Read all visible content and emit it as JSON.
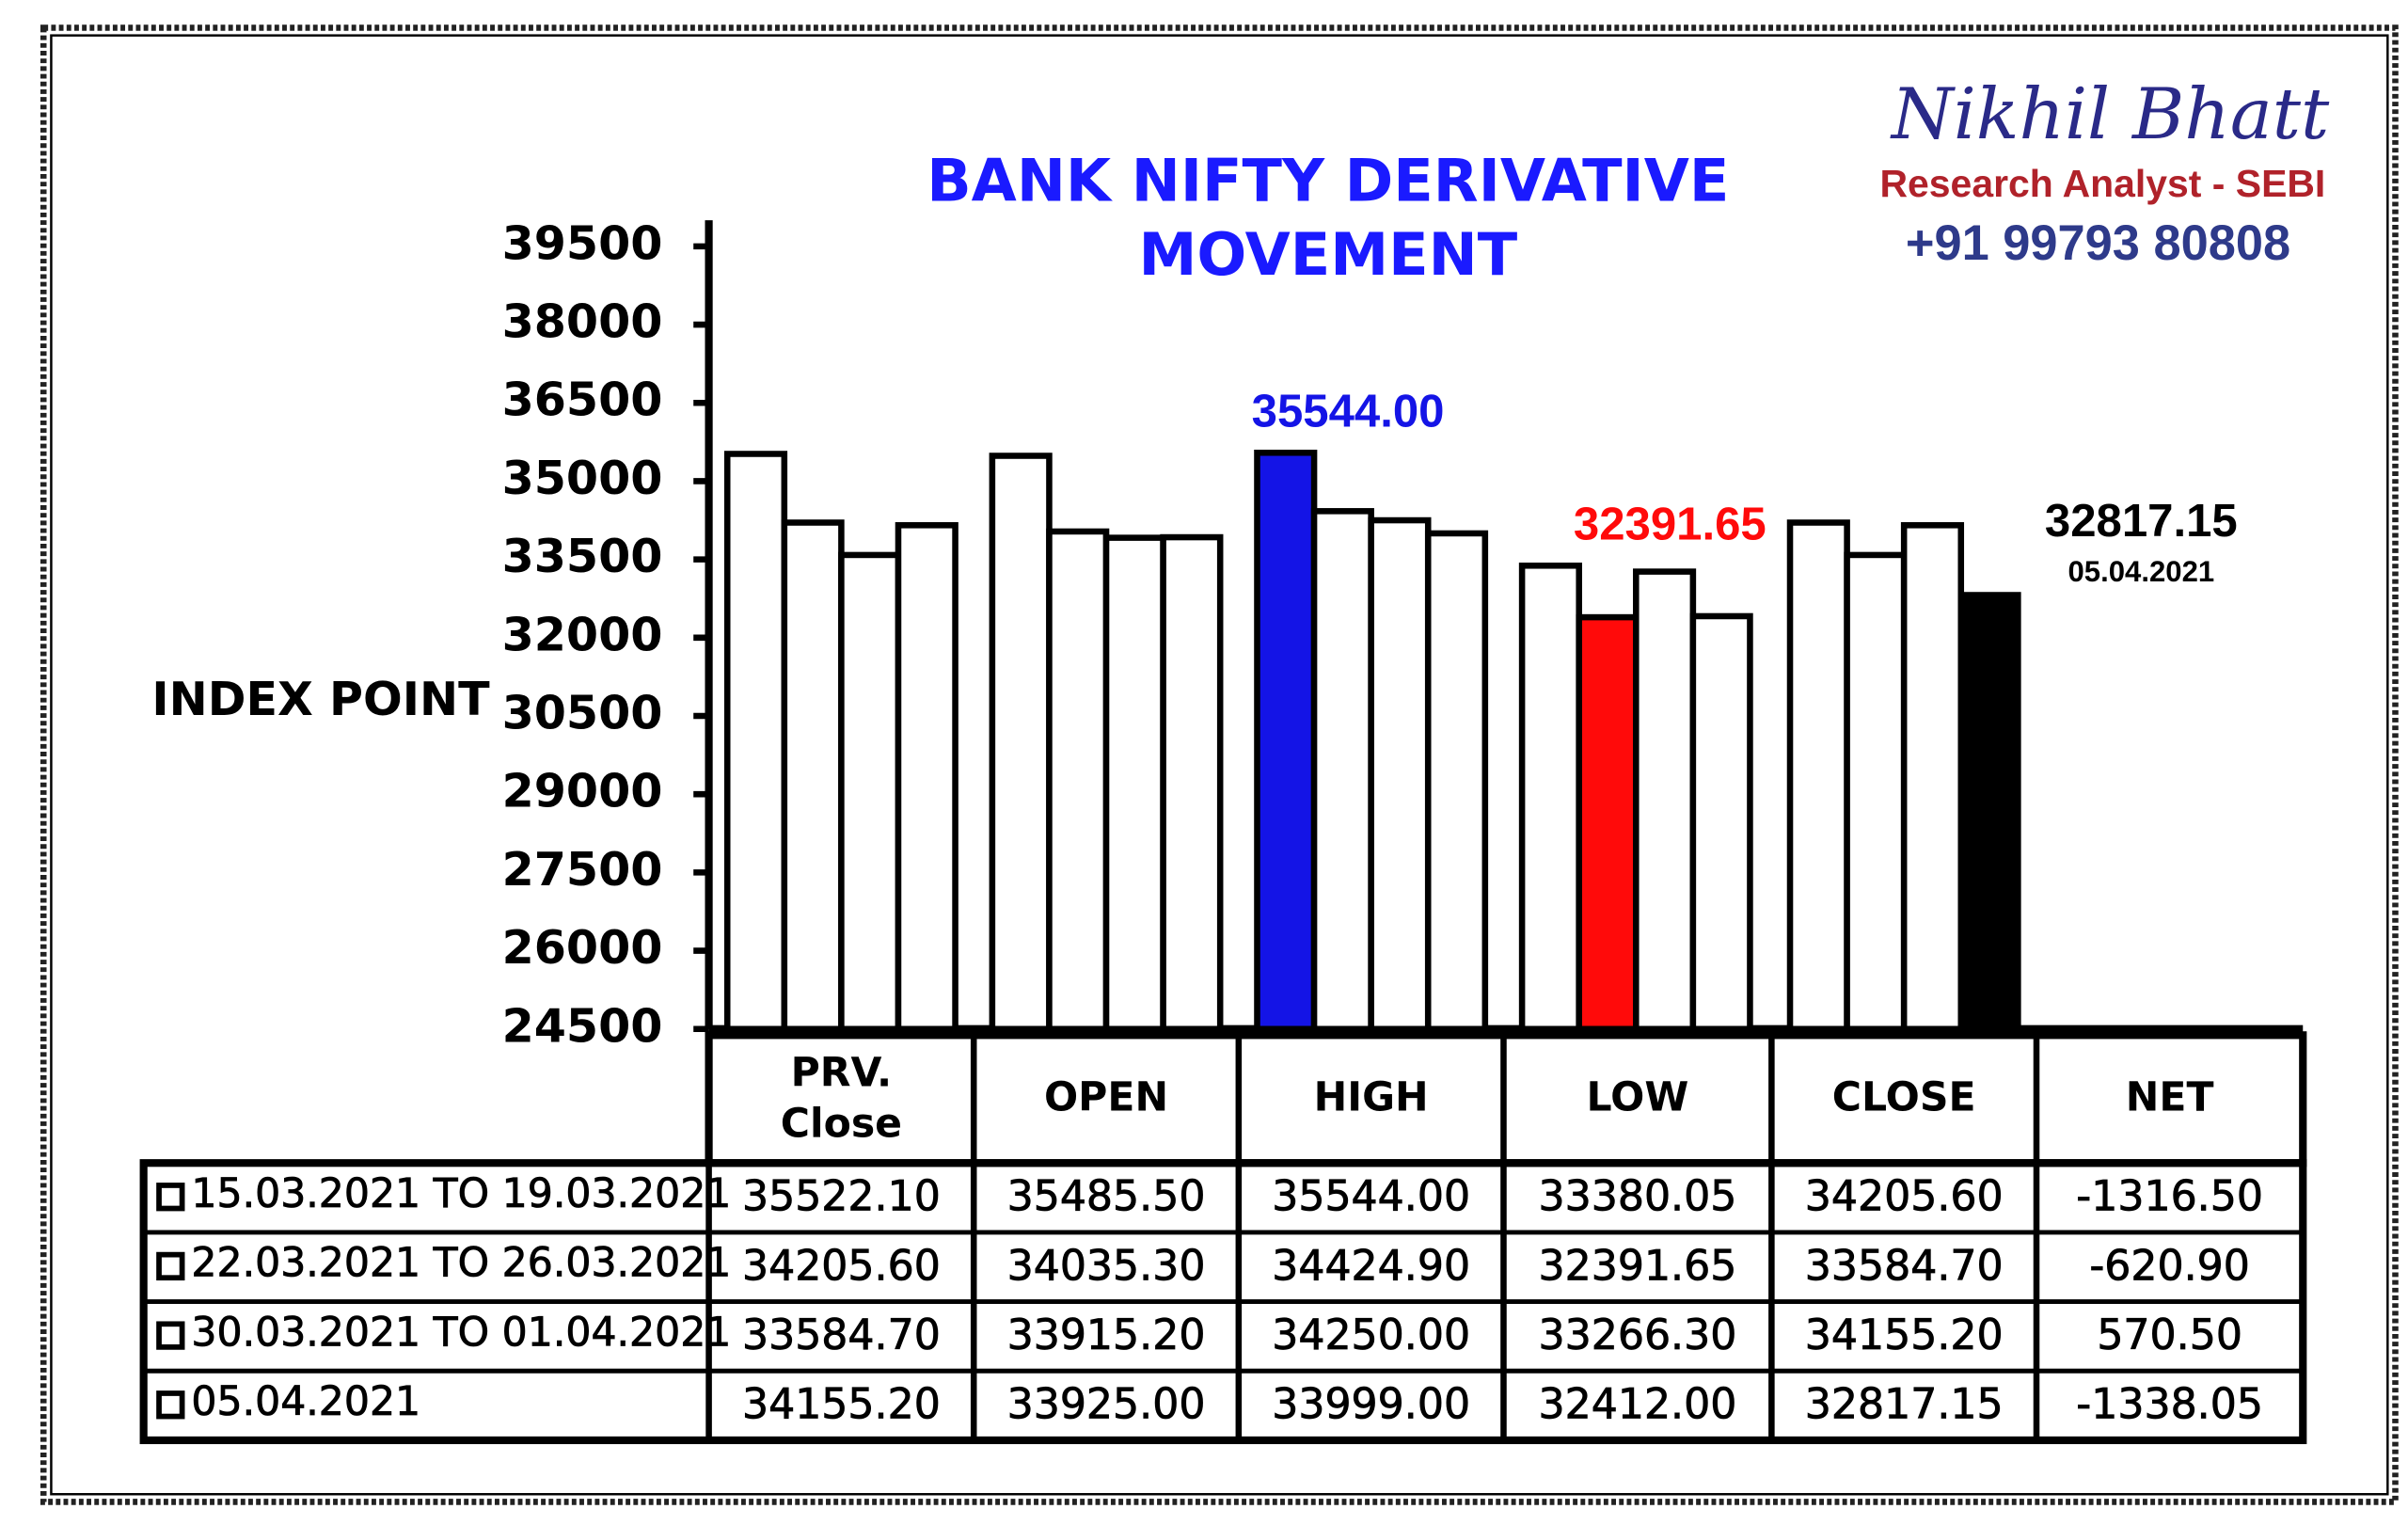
{
  "chart_data": {
    "type": "bar",
    "title": [
      "BANK NIFTY DERIVATIVE",
      "MOVEMENT"
    ],
    "title_color": "#1a1aff",
    "ylabel": "INDEX POINT",
    "categories": [
      "PRV. Close",
      "OPEN",
      "HIGH",
      "LOW",
      "CLOSE"
    ],
    "series": [
      {
        "name": "15.03.2021 TO 19.03.2021",
        "color": "#ffffff",
        "values": [
          35522.1,
          35485.5,
          35544,
          33380.05,
          34205.6
        ],
        "value_labels": [
          "35522.10",
          "35485.50",
          "35544.00",
          "33380.05",
          "34205.60"
        ]
      },
      {
        "name": "22.03.2021 TO 26.03.2021",
        "color": "#ffffff",
        "values": [
          34205.6,
          34035.3,
          34424.9,
          32391.65,
          33584.7
        ],
        "value_labels": [
          "34205.60",
          "34035.30",
          "34424.90",
          "32391.65",
          "33584.70"
        ]
      },
      {
        "name": "30.03.2021 TO 01.04.2021",
        "color": "#ffffff",
        "values": [
          33584.7,
          33915.2,
          34250,
          33266.3,
          34155.2
        ],
        "value_labels": [
          "33584.70",
          "33915.20",
          "34250.00",
          "33266.30",
          "34155.20"
        ]
      },
      {
        "name": "05.04.2021",
        "color": "#ffffff",
        "values": [
          34155.2,
          33925,
          33999,
          32412,
          32817.15
        ],
        "value_labels": [
          "34155.20",
          "33925.00",
          "33999.00",
          "32412.00",
          "32817.15"
        ]
      }
    ],
    "highlights": [
      {
        "series": 0,
        "index": 2,
        "color": "#1414e6"
      },
      {
        "series": 1,
        "index": 3,
        "color": "#ff0a0a"
      },
      {
        "series": 3,
        "index": 4,
        "color": "#000000"
      }
    ],
    "ylim": [
      24500,
      40000
    ],
    "yticks": [
      24500,
      26000,
      27500,
      29000,
      30500,
      32000,
      33500,
      35000,
      36500,
      38000,
      39500
    ],
    "net": {
      "label": "NET",
      "values": [
        -1316.5,
        -620.9,
        570.5,
        -1338.05
      ],
      "value_labels": [
        "-1316.50",
        "-620.90",
        "570.50",
        "-1338.05"
      ]
    }
  },
  "brand": {
    "name": "Nikhil Bhatt",
    "role": "Research Analyst - SEBI",
    "phone": "+91 99793 80808"
  }
}
